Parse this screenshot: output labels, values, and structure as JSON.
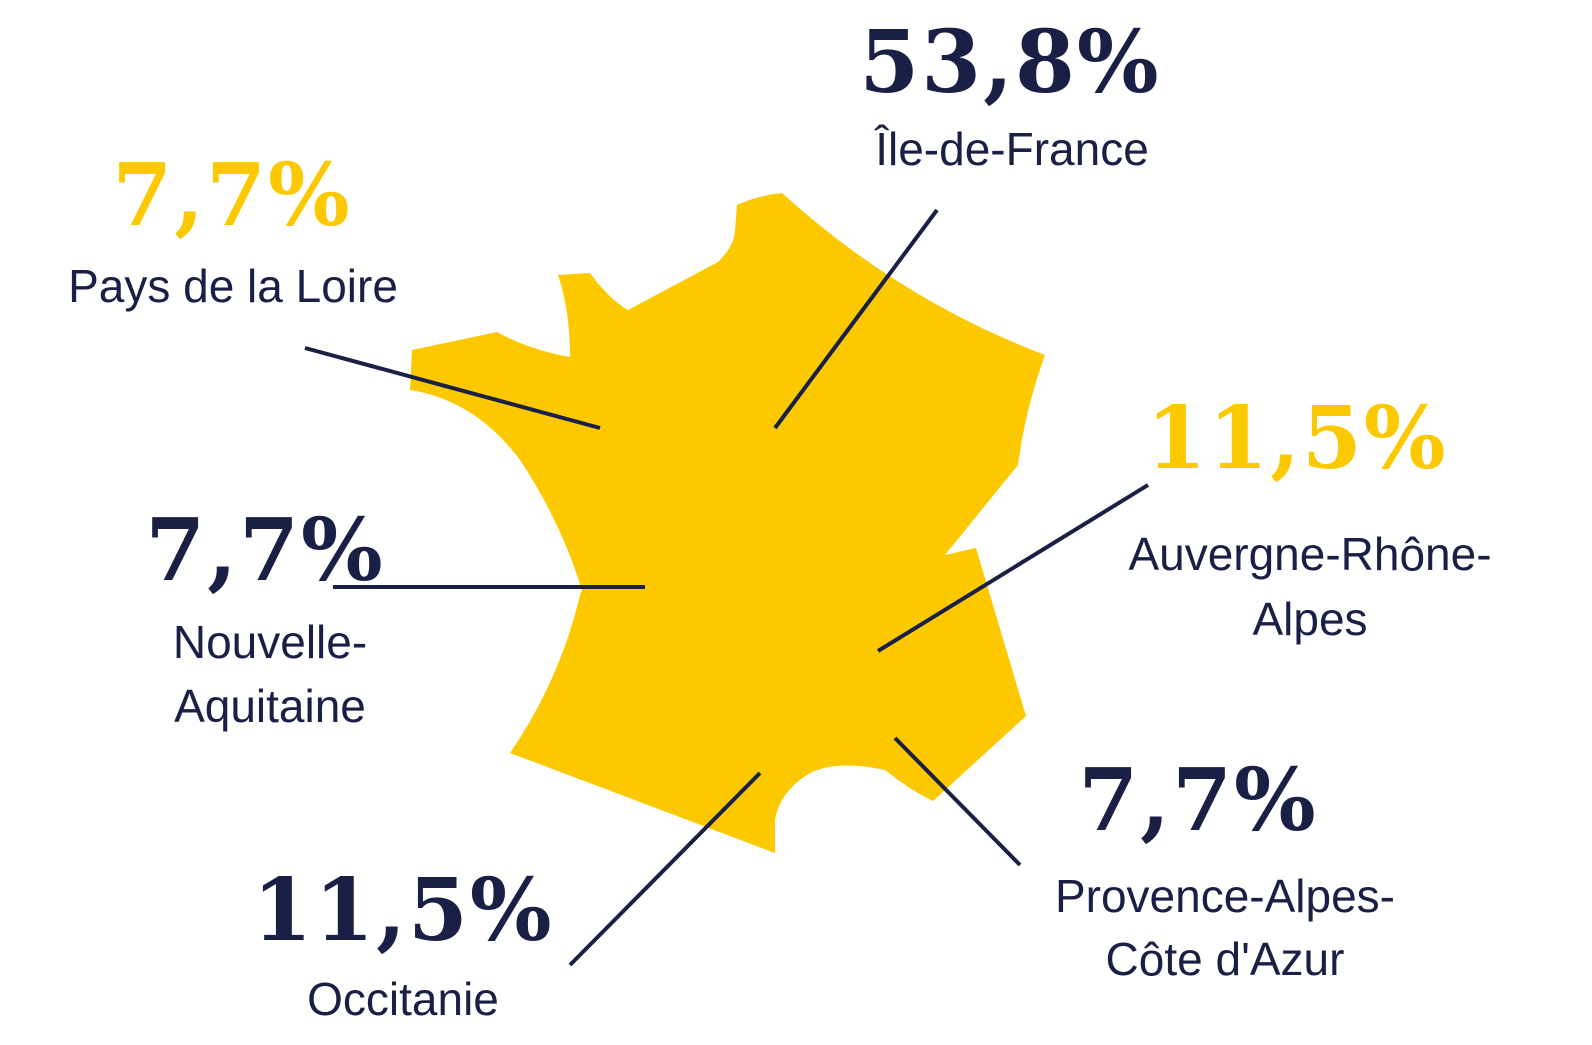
{
  "regions": [
    {
      "value": "53,8%",
      "name": [
        "Île-de-France"
      ],
      "color": "#1a1f45"
    },
    {
      "value": "7,7%",
      "name": [
        "Pays de la Loire"
      ],
      "color": "#fcc900"
    },
    {
      "value": "11,5%",
      "name": [
        "Auvergne-Rhône-",
        "Alpes"
      ],
      "color": "#fcc900"
    },
    {
      "value": "7,7%",
      "name": [
        "Nouvelle-",
        "Aquitaine"
      ],
      "color": "#1a1f45"
    },
    {
      "value": "7,7%",
      "name": [
        "Provence-Alpes-",
        "Côte d'Azur"
      ],
      "color": "#1a1f45"
    },
    {
      "value": "11,5%",
      "name": [
        "Occitanie"
      ],
      "color": "#1a1f45"
    }
  ]
}
